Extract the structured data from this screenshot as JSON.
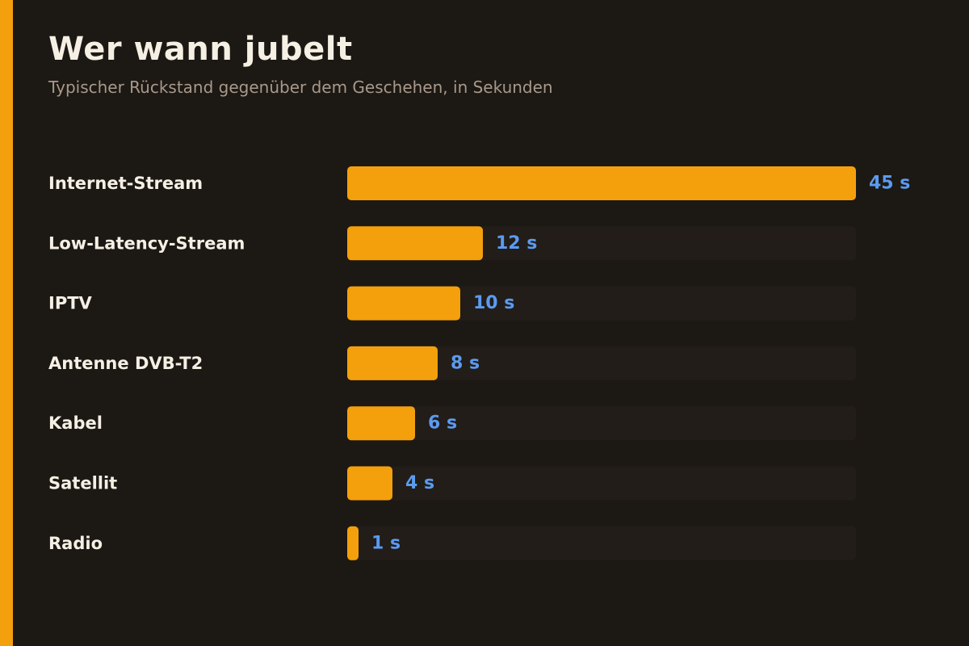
{
  "title": "Wer wann jubelt",
  "subtitle": "Typischer Rückstand gegenüber dem Geschehen, in Sekunden",
  "colors": {
    "background": "#1c1814",
    "accent": "#f4a00c",
    "bar": "#f4a00c",
    "track": "#221d18",
    "label": "#f5efe4",
    "value": "#5b9bf0"
  },
  "chart_data": {
    "type": "bar",
    "orientation": "horizontal",
    "categories": [
      "Internet-Stream",
      "Low-Latency-Stream",
      "IPTV",
      "Antenne DVB-T2",
      "Kabel",
      "Satellit",
      "Radio"
    ],
    "values": [
      45,
      12,
      10,
      8,
      6,
      4,
      1
    ],
    "value_labels": [
      "45 s",
      "12 s",
      "10 s",
      "8 s",
      "6 s",
      "4 s",
      "1 s"
    ],
    "xlim": [
      0,
      45
    ],
    "grid": false
  }
}
